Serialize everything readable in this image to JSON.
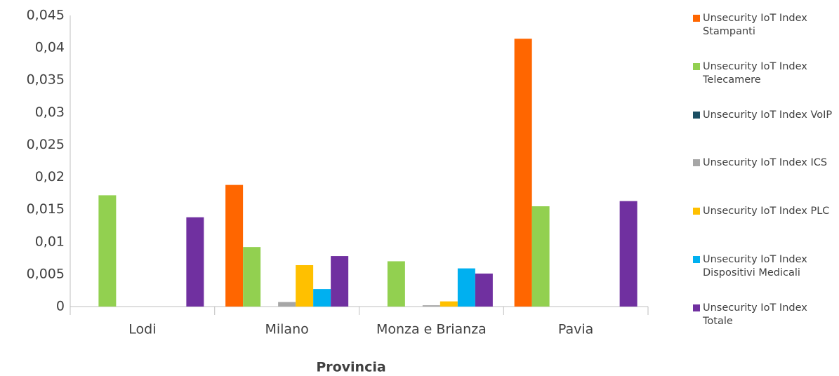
{
  "chart_data": {
    "type": "bar",
    "x_label": "Provincia",
    "categories": [
      "Lodi",
      "Milano",
      "Monza e Brianza",
      "Pavia"
    ],
    "series": [
      {
        "name": "Unsecurity IoT Index Stampanti",
        "color": "#ff6600",
        "values": [
          0,
          0.0188,
          0,
          0.0414
        ]
      },
      {
        "name": "Unsecurity IoT Index Telecamere",
        "color": "#92d050",
        "values": [
          0.0172,
          0.0092,
          0.007,
          0.0155
        ]
      },
      {
        "name": "Unsecurity IoT Index VoIP",
        "color": "#1b4f63",
        "values": [
          0,
          0,
          0,
          0
        ]
      },
      {
        "name": "Unsecurity IoT Index ICS",
        "color": "#a6a6a6",
        "values": [
          0,
          0.0007,
          0.0002,
          0
        ]
      },
      {
        "name": "Unsecurity IoT Index PLC",
        "color": "#ffc000",
        "values": [
          0,
          0.0064,
          0.0008,
          0
        ]
      },
      {
        "name": "Unsecurity IoT Index Dispositivi Medicali",
        "color": "#00b0f0",
        "values": [
          0,
          0.0027,
          0.0059,
          0
        ]
      },
      {
        "name": "Unsecurity IoT Index Totale",
        "color": "#7030a0",
        "values": [
          0.0138,
          0.0078,
          0.0051,
          0.0163
        ]
      }
    ],
    "ylim": [
      0,
      0.045
    ],
    "yticks": [
      0,
      {
        "value": 0.005,
        "label": "0,005"
      },
      {
        "value": 0.01,
        "label": "0,01"
      },
      {
        "value": 0.015,
        "label": "0,015"
      },
      {
        "value": 0.02,
        "label": "0,02"
      },
      {
        "value": 0.025,
        "label": "0,025"
      },
      {
        "value": 0.03,
        "label": "0,03"
      },
      {
        "value": 0.035,
        "label": "0,035"
      },
      {
        "value": 0.04,
        "label": "0,04"
      },
      {
        "value": 0.045,
        "label": "0,045"
      }
    ],
    "grid": false,
    "legend": "right"
  }
}
